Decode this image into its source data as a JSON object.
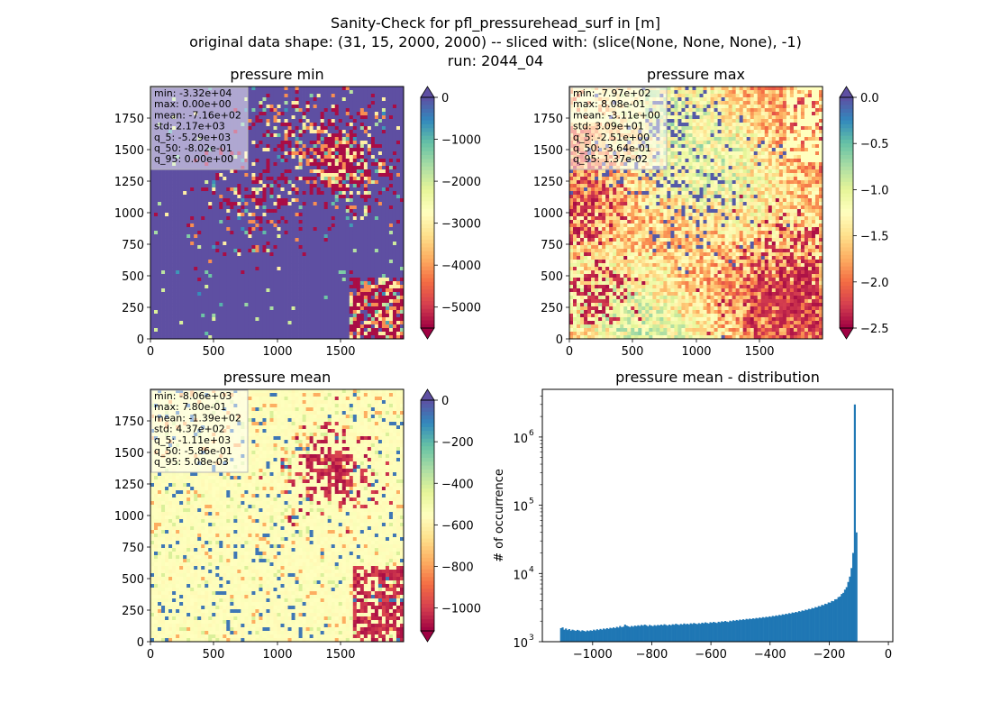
{
  "figure": {
    "title_lines": [
      "Sanity-Check for pfl_pressurehead_surf in [m]",
      "original data shape: (31, 15, 2000, 2000) -- sliced with: (slice(None, None, None), -1)",
      "run: 2044_04"
    ]
  },
  "chart_data": [
    {
      "type": "heatmap",
      "title": "pressure min",
      "xlim": [
        0,
        2000
      ],
      "ylim": [
        0,
        2000
      ],
      "x_ticks": [
        "0",
        "500",
        "1000",
        "1500"
      ],
      "y_ticks": [
        "0",
        "250",
        "500",
        "750",
        "1000",
        "1250",
        "1500",
        "1750"
      ],
      "colormap": "Spectral",
      "color_range": [
        -5500,
        0
      ],
      "colorbar_ticks": [
        "0",
        "−1000",
        "−2000",
        "−3000",
        "−4000",
        "−5000"
      ],
      "colorbar_extend": "both",
      "stats": [
        "min: -3.32e+04",
        "max: 0.00e+00",
        "mean: -7.16e+02",
        "std: 2.17e+03",
        "q_5: -5.29e+03",
        "q_50: -8.02e-01",
        "q_95: 0.00e+00"
      ]
    },
    {
      "type": "heatmap",
      "title": "pressure max",
      "xlim": [
        0,
        2000
      ],
      "ylim": [
        0,
        2000
      ],
      "x_ticks": [
        "0",
        "500",
        "1000",
        "1500"
      ],
      "y_ticks": [
        "0",
        "250",
        "500",
        "750",
        "1000",
        "1250",
        "1500",
        "1750"
      ],
      "colormap": "Spectral",
      "color_range": [
        -2.5,
        0
      ],
      "colorbar_ticks": [
        "0.0",
        "−0.5",
        "−1.0",
        "−1.5",
        "−2.0",
        "−2.5"
      ],
      "colorbar_extend": "both",
      "stats": [
        "min: -7.97e+02",
        "max: 8.08e-01",
        "mean: -3.11e+00",
        "std: 3.09e+01",
        "q_5: -2.51e+00",
        "q_50: -3.64e-01",
        "q_95: 1.37e-02"
      ]
    },
    {
      "type": "heatmap",
      "title": "pressure mean",
      "xlim": [
        0,
        2000
      ],
      "ylim": [
        0,
        2000
      ],
      "x_ticks": [
        "0",
        "500",
        "1000",
        "1500"
      ],
      "y_ticks": [
        "0",
        "250",
        "500",
        "750",
        "1000",
        "1250",
        "1500",
        "1750"
      ],
      "colormap": "Spectral",
      "color_range": [
        -1110,
        0
      ],
      "colorbar_ticks": [
        "0",
        "−200",
        "−400",
        "−600",
        "−800",
        "−1000"
      ],
      "colorbar_extend": "both",
      "stats": [
        "min: -8.06e+03",
        "max: 7.80e-01",
        "mean: -1.39e+02",
        "std: 4.37e+02",
        "q_5: -1.11e+03",
        "q_50: -5.86e-01",
        "q_95: 5.08e-03"
      ]
    },
    {
      "type": "bar",
      "title": "pressure mean - distribution",
      "xlabel": "",
      "ylabel": "# of occurrence",
      "yscale": "log",
      "xlim": [
        -1170,
        15
      ],
      "ylim": [
        1000,
        5000000
      ],
      "x_ticks": [
        "−1000",
        "−800",
        "−600",
        "−400",
        "−200",
        "0"
      ],
      "y_ticks": [
        "10",
        "10",
        "10",
        "10"
      ],
      "y_tick_exponents": [
        "3",
        "4",
        "5",
        "6"
      ],
      "color": "#1f77b4",
      "bins": {
        "x_start": -1110,
        "bin_width": 5.55,
        "counts": [
          1580,
          1620,
          1500,
          1560,
          1480,
          1530,
          1450,
          1500,
          1470,
          1440,
          1490,
          1460,
          1420,
          1470,
          1440,
          1410,
          1460,
          1430,
          1470,
          1440,
          1500,
          1460,
          1520,
          1480,
          1540,
          1500,
          1560,
          1520,
          1580,
          1540,
          1600,
          1570,
          1620,
          1580,
          1650,
          1610,
          1700,
          1630,
          1660,
          1780,
          1720,
          1680,
          1640,
          1700,
          1660,
          1720,
          1690,
          1740,
          1700,
          1760,
          1720,
          1780,
          1740,
          1680,
          1760,
          1720,
          1690,
          1750,
          1710,
          1760,
          1730,
          1780,
          1740,
          1800,
          1760,
          1720,
          1780,
          1740,
          1800,
          1770,
          1830,
          1790,
          1760,
          1820,
          1780,
          1850,
          1800,
          1830,
          1790,
          1860,
          1820,
          1880,
          1840,
          1810,
          1870,
          1830,
          1900,
          1860,
          1920,
          1880,
          1850,
          1930,
          1890,
          1950,
          1910,
          1880,
          1960,
          1920,
          1990,
          1950,
          2010,
          1970,
          1940,
          2030,
          1990,
          2060,
          2020,
          2080,
          2040,
          2110,
          2070,
          2130,
          2090,
          2160,
          2120,
          2180,
          2140,
          2200,
          2170,
          2230,
          2190,
          2260,
          2220,
          2290,
          2250,
          2320,
          2280,
          2350,
          2310,
          2390,
          2350,
          2430,
          2390,
          2470,
          2430,
          2520,
          2480,
          2570,
          2530,
          2620,
          2580,
          2680,
          2640,
          2730,
          2690,
          2800,
          2760,
          2870,
          2830,
          2950,
          2910,
          3030,
          2990,
          3120,
          3080,
          3220,
          3180,
          3330,
          3290,
          3460,
          3420,
          3600,
          3560,
          3760,
          3730,
          3950,
          3920,
          4180,
          4200,
          4500,
          4600,
          5000,
          5200,
          5800,
          6300,
          7500,
          9000,
          12000,
          20000,
          3000000,
          40000
        ]
      }
    }
  ]
}
